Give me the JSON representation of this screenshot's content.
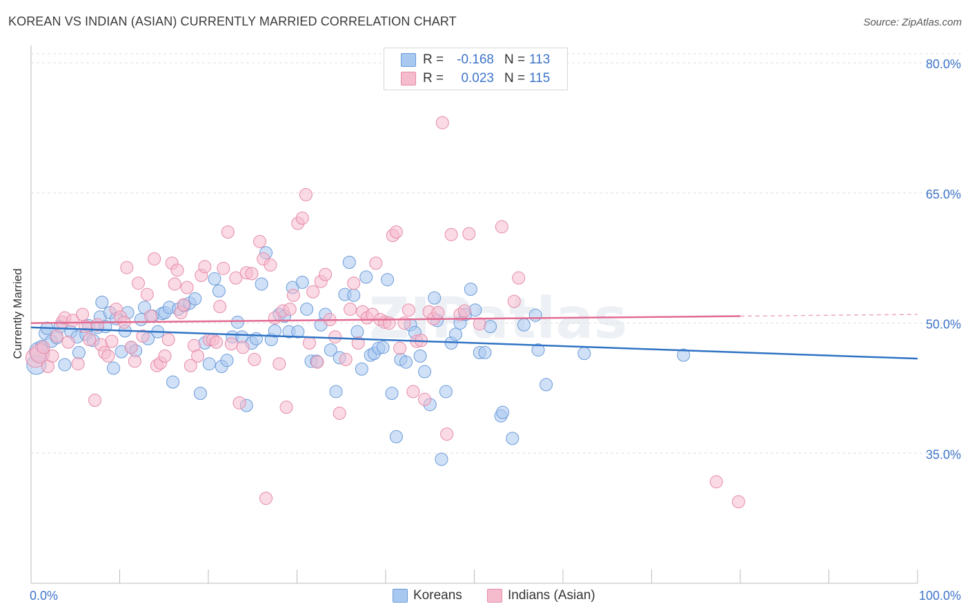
{
  "title": "KOREAN VS INDIAN (ASIAN) CURRENTLY MARRIED CORRELATION CHART",
  "source": "Source: ZipAtlas.com",
  "watermark": "ZIPatlas",
  "colors": {
    "korean_fill": "#a9c8f0",
    "korean_stroke": "#6a9ad8",
    "korean_line": "#2e72c4",
    "indian_fill": "#f5bccd",
    "indian_stroke": "#e58aa8",
    "indian_line": "#e26a92",
    "axis_text": "#3d74c8",
    "grid": "#dddddd"
  },
  "stats": [
    {
      "swatch": "korean",
      "r_label": "R =",
      "r_value": "-0.168",
      "n_label": "N =",
      "n_value": "113"
    },
    {
      "swatch": "indian",
      "r_label": "R =",
      "r_value": "0.023",
      "n_label": "N =",
      "n_value": "115"
    }
  ],
  "legend": [
    {
      "swatch": "korean",
      "label": "Koreans"
    },
    {
      "swatch": "indian",
      "label": "Indians (Asian)"
    }
  ],
  "chart_data": {
    "type": "scatter",
    "title": "KOREAN VS INDIAN (ASIAN) CURRENTLY MARRIED CORRELATION CHART",
    "xlabel": "",
    "ylabel": "Currently Married",
    "xlim": [
      0,
      100
    ],
    "ylim": [
      20,
      82
    ],
    "x_tick_labels": [
      "0.0%",
      "100.0%"
    ],
    "y_ticks": [
      35,
      50,
      65,
      80
    ],
    "y_tick_labels": [
      "35.0%",
      "50.0%",
      "65.0%",
      "80.0%"
    ],
    "grid": true,
    "series": [
      {
        "name": "Koreans",
        "color": "#a9c8f0",
        "trend": {
          "x": [
            0,
            100
          ],
          "y": [
            49.5,
            45.9
          ]
        },
        "points": [
          [
            0.6,
            45.2
          ],
          [
            0.9,
            46.7
          ],
          [
            1.2,
            47.3
          ],
          [
            1.6,
            48.8
          ],
          [
            1.8,
            49.4
          ],
          [
            2.3,
            47.9
          ],
          [
            2.9,
            48.3
          ],
          [
            3.3,
            49.6
          ],
          [
            3.8,
            45.2
          ],
          [
            4.5,
            49.0
          ],
          [
            5.2,
            48.4
          ],
          [
            5.4,
            46.6
          ],
          [
            6.2,
            48.7
          ],
          [
            6.5,
            49.7
          ],
          [
            7.0,
            48.0
          ],
          [
            7.5,
            49.5
          ],
          [
            7.8,
            50.7
          ],
          [
            8.0,
            52.4
          ],
          [
            8.4,
            49.6
          ],
          [
            8.9,
            51.2
          ],
          [
            9.3,
            44.8
          ],
          [
            9.6,
            50.5
          ],
          [
            10.2,
            46.7
          ],
          [
            10.6,
            49.1
          ],
          [
            10.9,
            51.2
          ],
          [
            11.3,
            47.2
          ],
          [
            11.8,
            46.8
          ],
          [
            12.4,
            50.4
          ],
          [
            12.8,
            51.8
          ],
          [
            13.2,
            48.2
          ],
          [
            13.7,
            50.8
          ],
          [
            14.3,
            49.0
          ],
          [
            14.8,
            51.1
          ],
          [
            15.1,
            51.2
          ],
          [
            15.6,
            51.8
          ],
          [
            16.0,
            43.2
          ],
          [
            16.6,
            51.6
          ],
          [
            17.3,
            52.0
          ],
          [
            17.9,
            52.3
          ],
          [
            18.5,
            52.8
          ],
          [
            19.1,
            41.9
          ],
          [
            19.6,
            47.7
          ],
          [
            20.1,
            45.3
          ],
          [
            20.7,
            55.1
          ],
          [
            21.2,
            53.7
          ],
          [
            21.5,
            45.0
          ],
          [
            22.1,
            45.7
          ],
          [
            22.7,
            48.4
          ],
          [
            23.3,
            50.1
          ],
          [
            23.8,
            48.4
          ],
          [
            24.3,
            40.5
          ],
          [
            24.9,
            47.7
          ],
          [
            25.4,
            48.2
          ],
          [
            26.0,
            54.5
          ],
          [
            26.5,
            58.1
          ],
          [
            27.1,
            48.1
          ],
          [
            27.5,
            49.1
          ],
          [
            28.0,
            51.0
          ],
          [
            28.6,
            50.8
          ],
          [
            29.1,
            49.0
          ],
          [
            29.5,
            54.1
          ],
          [
            30.1,
            49.0
          ],
          [
            30.6,
            54.7
          ],
          [
            31.1,
            51.6
          ],
          [
            31.6,
            45.6
          ],
          [
            32.2,
            45.6
          ],
          [
            32.7,
            49.8
          ],
          [
            33.2,
            51.0
          ],
          [
            33.8,
            46.9
          ],
          [
            34.4,
            42.1
          ],
          [
            34.8,
            46.0
          ],
          [
            35.4,
            53.3
          ],
          [
            35.9,
            57.0
          ],
          [
            36.4,
            53.2
          ],
          [
            36.8,
            49.0
          ],
          [
            37.3,
            44.7
          ],
          [
            37.8,
            55.3
          ],
          [
            38.3,
            46.3
          ],
          [
            38.7,
            46.5
          ],
          [
            39.2,
            47.1
          ],
          [
            39.7,
            47.2
          ],
          [
            40.2,
            55.0
          ],
          [
            40.7,
            41.9
          ],
          [
            41.2,
            36.9
          ],
          [
            41.7,
            45.8
          ],
          [
            42.3,
            45.5
          ],
          [
            42.8,
            49.8
          ],
          [
            43.3,
            48.9
          ],
          [
            43.9,
            46.2
          ],
          [
            44.4,
            44.4
          ],
          [
            45.0,
            40.6
          ],
          [
            45.5,
            52.9
          ],
          [
            45.8,
            50.3
          ],
          [
            46.3,
            34.3
          ],
          [
            46.8,
            42.1
          ],
          [
            47.4,
            47.7
          ],
          [
            47.9,
            48.7
          ],
          [
            48.4,
            50.0
          ],
          [
            49.0,
            51.0
          ],
          [
            49.6,
            53.9
          ],
          [
            50.1,
            51.5
          ],
          [
            50.6,
            46.6
          ],
          [
            51.2,
            46.6
          ],
          [
            51.8,
            49.6
          ],
          [
            53.0,
            39.3
          ],
          [
            53.2,
            39.7
          ],
          [
            54.3,
            36.7
          ],
          [
            55.6,
            49.8
          ],
          [
            56.9,
            50.9
          ],
          [
            57.2,
            46.9
          ],
          [
            58.1,
            42.9
          ],
          [
            62.4,
            46.5
          ],
          [
            73.6,
            46.3
          ]
        ]
      },
      {
        "name": "Indians (Asian)",
        "color": "#f5bccd",
        "trend": {
          "x": [
            0,
            80
          ],
          "y": [
            50.0,
            50.8
          ]
        },
        "points": [
          [
            0.5,
            46.0
          ],
          [
            1.0,
            46.5
          ],
          [
            1.4,
            47.2
          ],
          [
            1.9,
            45.0
          ],
          [
            2.4,
            46.2
          ],
          [
            2.9,
            48.5
          ],
          [
            3.5,
            50.1
          ],
          [
            3.8,
            50.6
          ],
          [
            4.2,
            47.8
          ],
          [
            4.7,
            50.3
          ],
          [
            5.3,
            45.3
          ],
          [
            5.8,
            51.0
          ],
          [
            6.1,
            49.6
          ],
          [
            6.6,
            48.1
          ],
          [
            7.2,
            41.1
          ],
          [
            7.5,
            49.8
          ],
          [
            7.9,
            47.5
          ],
          [
            8.3,
            46.6
          ],
          [
            8.7,
            46.2
          ],
          [
            9.1,
            47.9
          ],
          [
            9.6,
            51.6
          ],
          [
            10.1,
            50.7
          ],
          [
            10.5,
            50.1
          ],
          [
            10.8,
            56.4
          ],
          [
            11.3,
            47.2
          ],
          [
            11.7,
            45.6
          ],
          [
            12.1,
            54.6
          ],
          [
            12.6,
            48.5
          ],
          [
            13.1,
            53.3
          ],
          [
            13.5,
            50.8
          ],
          [
            13.9,
            57.4
          ],
          [
            14.2,
            45.1
          ],
          [
            14.6,
            45.4
          ],
          [
            15.1,
            46.2
          ],
          [
            15.5,
            48.1
          ],
          [
            15.9,
            56.9
          ],
          [
            16.2,
            54.5
          ],
          [
            16.5,
            56.1
          ],
          [
            16.9,
            51.2
          ],
          [
            17.2,
            52.1
          ],
          [
            17.6,
            54.1
          ],
          [
            18.0,
            45.1
          ],
          [
            18.4,
            47.4
          ],
          [
            18.8,
            46.2
          ],
          [
            19.2,
            55.5
          ],
          [
            19.6,
            56.5
          ],
          [
            20.1,
            48.1
          ],
          [
            20.5,
            48.1
          ],
          [
            20.9,
            47.8
          ],
          [
            21.3,
            51.9
          ],
          [
            21.7,
            56.3
          ],
          [
            22.2,
            60.5
          ],
          [
            22.6,
            47.6
          ],
          [
            23.1,
            55.2
          ],
          [
            23.5,
            40.8
          ],
          [
            23.9,
            47.2
          ],
          [
            24.3,
            55.8
          ],
          [
            24.9,
            55.7
          ],
          [
            25.2,
            45.8
          ],
          [
            25.8,
            59.4
          ],
          [
            26.2,
            57.4
          ],
          [
            26.5,
            29.8
          ],
          [
            27.0,
            56.7
          ],
          [
            27.5,
            50.6
          ],
          [
            28.0,
            45.3
          ],
          [
            28.4,
            51.4
          ],
          [
            28.8,
            40.3
          ],
          [
            29.2,
            51.6
          ],
          [
            29.6,
            53.2
          ],
          [
            30.1,
            61.5
          ],
          [
            30.6,
            62.1
          ],
          [
            31.0,
            64.8
          ],
          [
            31.4,
            47.7
          ],
          [
            31.8,
            53.6
          ],
          [
            32.3,
            45.5
          ],
          [
            32.7,
            54.8
          ],
          [
            33.2,
            55.6
          ],
          [
            33.7,
            50.4
          ],
          [
            34.3,
            48.4
          ],
          [
            34.8,
            39.6
          ],
          [
            35.5,
            45.8
          ],
          [
            36.0,
            51.6
          ],
          [
            36.4,
            54.6
          ],
          [
            36.9,
            47.7
          ],
          [
            37.4,
            51.3
          ],
          [
            37.9,
            50.6
          ],
          [
            38.5,
            51.0
          ],
          [
            38.9,
            56.9
          ],
          [
            39.4,
            50.4
          ],
          [
            39.9,
            50.1
          ],
          [
            40.4,
            50.0
          ],
          [
            40.8,
            60.1
          ],
          [
            41.2,
            60.5
          ],
          [
            41.6,
            47.1
          ],
          [
            42.1,
            50.0
          ],
          [
            42.6,
            51.5
          ],
          [
            43.1,
            42.1
          ],
          [
            43.5,
            47.9
          ],
          [
            44.0,
            48.0
          ],
          [
            44.4,
            41.2
          ],
          [
            44.9,
            51.3
          ],
          [
            45.4,
            50.5
          ],
          [
            45.9,
            51.2
          ],
          [
            46.4,
            73.1
          ],
          [
            46.9,
            37.2
          ],
          [
            47.4,
            60.2
          ],
          [
            48.4,
            51.0
          ],
          [
            48.9,
            51.4
          ],
          [
            49.4,
            60.3
          ],
          [
            50.6,
            49.9
          ],
          [
            53.1,
            61.1
          ],
          [
            54.5,
            52.5
          ],
          [
            55.0,
            55.2
          ],
          [
            77.3,
            31.7
          ],
          [
            79.8,
            29.4
          ]
        ]
      }
    ]
  }
}
